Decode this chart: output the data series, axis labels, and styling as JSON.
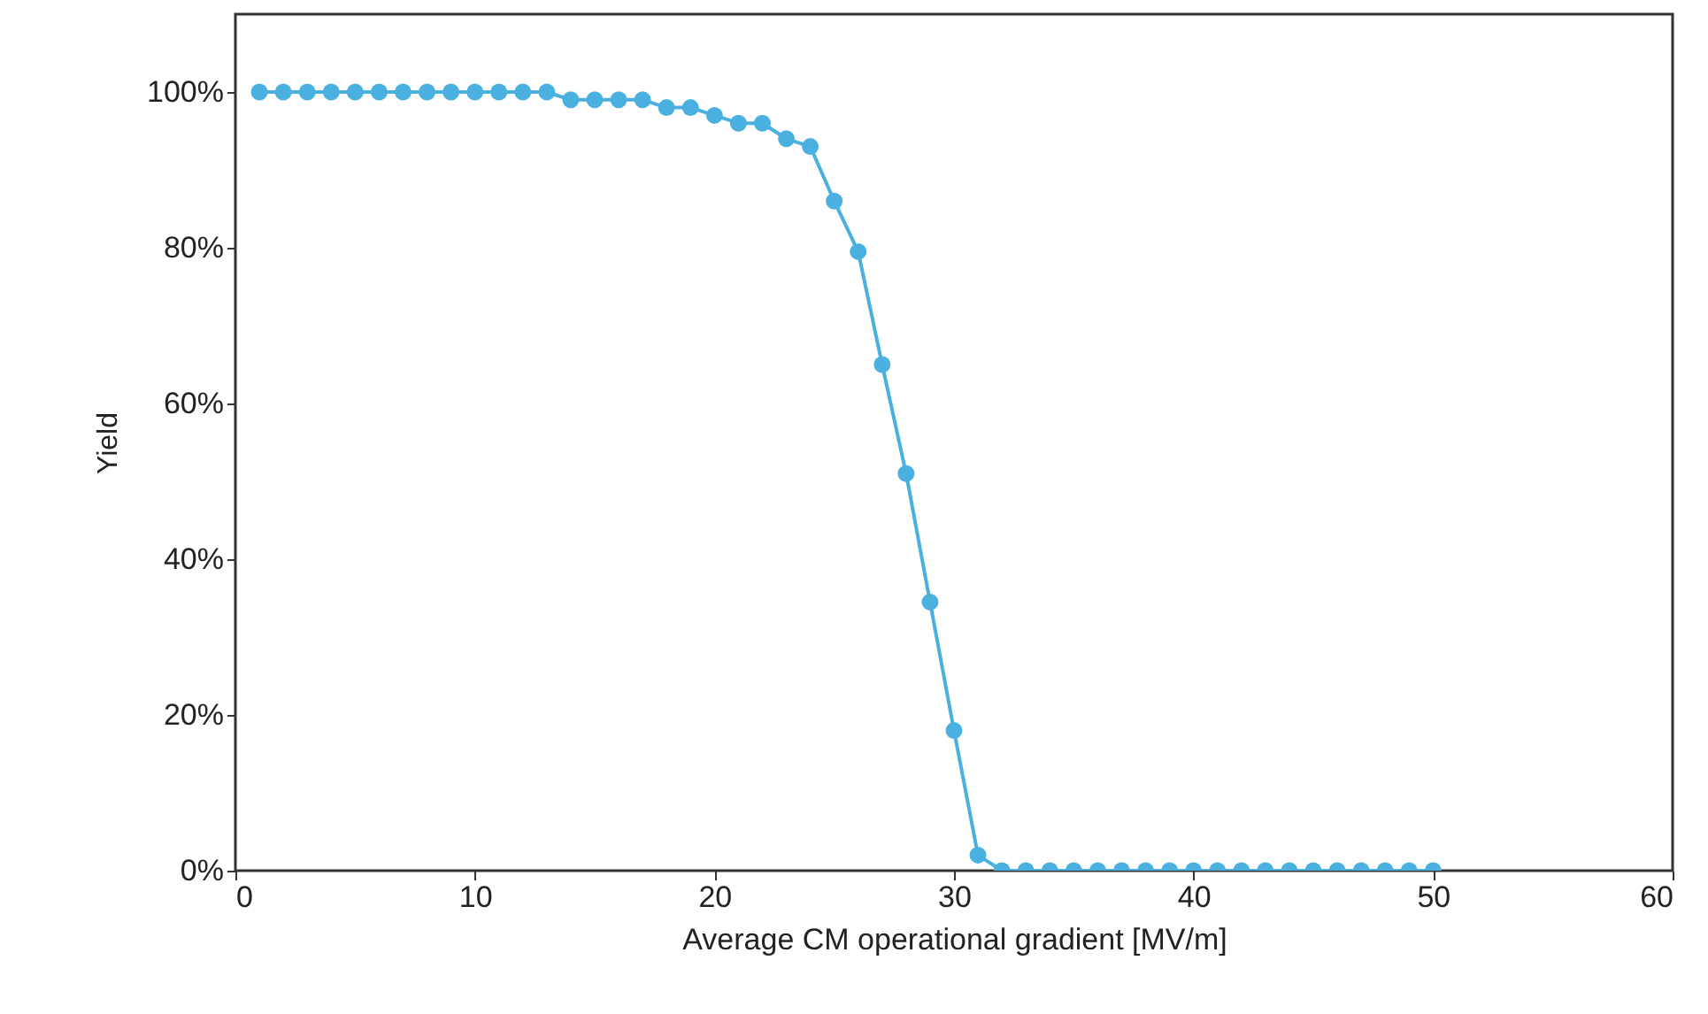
{
  "chart_data": {
    "type": "line",
    "xlabel": "Average CM operational gradient [MV/m]",
    "ylabel": "Yield",
    "xlim": [
      0,
      60
    ],
    "xticks": [
      0,
      10,
      20,
      30,
      40,
      50,
      60
    ],
    "ylim": [
      0,
      110
    ],
    "yticks": [
      {
        "value": 0,
        "label": "0%"
      },
      {
        "value": 20,
        "label": "20%"
      },
      {
        "value": 40,
        "label": "40%"
      },
      {
        "value": 60,
        "label": "60%"
      },
      {
        "value": 80,
        "label": "80%"
      },
      {
        "value": 100,
        "label": "100%"
      }
    ],
    "x": [
      1,
      2,
      3,
      4,
      5,
      6,
      7,
      8,
      9,
      10,
      11,
      12,
      13,
      14,
      15,
      16,
      17,
      18,
      19,
      20,
      21,
      22,
      23,
      24,
      25,
      26,
      27,
      28,
      29,
      30,
      31,
      32,
      33,
      34,
      35,
      36,
      37,
      38,
      39,
      40,
      41,
      42,
      43,
      44,
      45,
      46,
      47,
      48,
      49,
      50
    ],
    "series": [
      {
        "color": "#4ab0e0",
        "values": [
          100,
          100,
          100,
          100,
          100,
          100,
          100,
          100,
          100,
          100,
          100,
          100,
          100,
          99,
          99,
          99,
          99,
          98,
          98,
          97,
          96,
          96,
          94,
          93,
          86,
          79.5,
          65,
          51,
          34.5,
          18,
          2,
          0,
          0,
          0,
          0,
          0,
          0,
          0,
          0,
          0,
          0,
          0,
          0,
          0,
          0,
          0,
          0,
          0,
          0,
          0
        ]
      }
    ],
    "marker": "circle",
    "line_style": "solid",
    "grid": false
  }
}
